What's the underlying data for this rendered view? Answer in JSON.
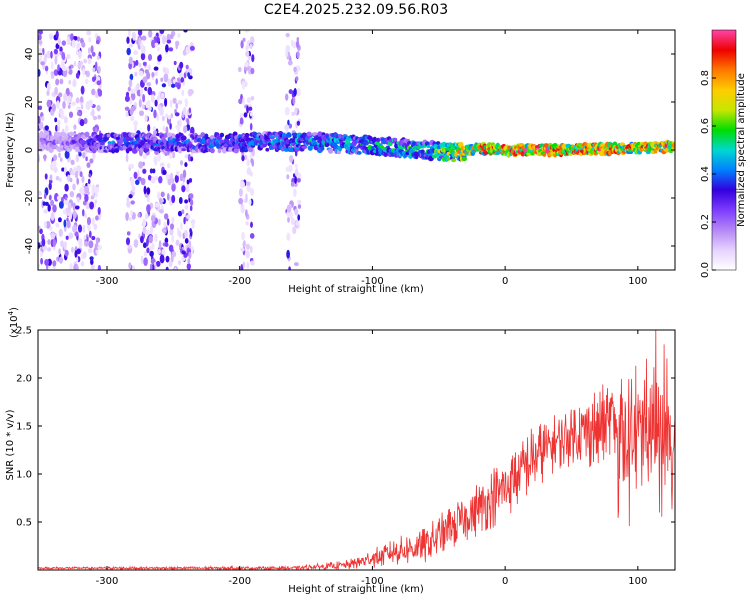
{
  "title": "C2E4.2025.232.09.56.R03",
  "chart_data": [
    {
      "type": "heatmap",
      "xlabel": "Height of straight line (km)",
      "ylabel": "Frequency (Hz)",
      "xlim": [
        -352,
        128
      ],
      "ylim": [
        -50,
        50
      ],
      "x_ticks": [
        -300,
        -200,
        -100,
        0,
        100
      ],
      "y_ticks": [
        -40,
        -20,
        0,
        20,
        40
      ],
      "colorbar": {
        "label": "Normalized spectral amplitude",
        "range": [
          0,
          1
        ],
        "ticks": [
          "0.0",
          "0.2",
          "0.4",
          "0.6",
          "0.8"
        ],
        "colors": [
          "#ffffff",
          "#e6d2ff",
          "#b487f5",
          "#7d3cff",
          "#3300dd",
          "#0080ff",
          "#00d8d0",
          "#00dd00",
          "#c8e600",
          "#ffcc00",
          "#ff7700",
          "#ee0000",
          "#ff44aa"
        ]
      },
      "ridge": [
        {
          "x": -350,
          "f": 3.5,
          "amp": 0.2
        },
        {
          "x": -320,
          "f": 3.2,
          "amp": 0.3
        },
        {
          "x": -300,
          "f": 3.0,
          "amp": 0.42
        },
        {
          "x": -260,
          "f": 3.0,
          "amp": 0.4
        },
        {
          "x": -220,
          "f": 3.0,
          "amp": 0.42
        },
        {
          "x": -180,
          "f": 3.5,
          "amp": 0.45
        },
        {
          "x": -150,
          "f": 3.5,
          "amp": 0.5
        },
        {
          "x": -120,
          "f": 2.5,
          "amp": 0.5
        },
        {
          "x": -90,
          "f": 1.5,
          "amp": 0.55
        },
        {
          "x": -60,
          "f": 0.0,
          "amp": 0.55
        },
        {
          "x": -40,
          "f": -1.0,
          "amp": 0.7
        },
        {
          "x": -20,
          "f": 0.5,
          "amp": 0.85
        },
        {
          "x": 0,
          "f": 0.0,
          "amp": 0.9
        },
        {
          "x": 40,
          "f": 0.0,
          "amp": 0.88
        },
        {
          "x": 80,
          "f": 0.5,
          "amp": 0.85
        },
        {
          "x": 110,
          "f": 1.0,
          "amp": 0.88
        },
        {
          "x": 128,
          "f": 1.5,
          "amp": 0.85
        }
      ],
      "noise_columns": [
        [
          -352,
          -305
        ],
        [
          -285,
          -235
        ],
        [
          -200,
          -190
        ],
        [
          -165,
          -155
        ]
      ]
    },
    {
      "type": "line",
      "xlabel": "Height of straight line (km)",
      "ylabel": "SNR (10 * v/v)",
      "y_multiplier": "(x10",
      "y_multiplier_exp": "4",
      "xlim": [
        -352,
        128
      ],
      "ylim": [
        0,
        2.5
      ],
      "x_ticks": [
        -300,
        -200,
        -100,
        0,
        100
      ],
      "y_ticks": [
        0.5,
        1.0,
        1.5,
        2.0,
        2.5
      ],
      "y_tick_labels": [
        "0.5",
        "1.0",
        "1.5",
        "2.0",
        "2.5"
      ],
      "color": "#ee3333",
      "envelope": [
        {
          "x": -352,
          "base": 0.02,
          "spread": 0.01
        },
        {
          "x": -160,
          "base": 0.02,
          "spread": 0.02
        },
        {
          "x": -120,
          "base": 0.05,
          "spread": 0.05
        },
        {
          "x": -100,
          "base": 0.12,
          "spread": 0.1
        },
        {
          "x": -80,
          "base": 0.2,
          "spread": 0.15
        },
        {
          "x": -60,
          "base": 0.25,
          "spread": 0.2
        },
        {
          "x": -40,
          "base": 0.45,
          "spread": 0.25
        },
        {
          "x": -20,
          "base": 0.65,
          "spread": 0.3
        },
        {
          "x": 0,
          "base": 0.85,
          "spread": 0.35
        },
        {
          "x": 20,
          "base": 1.15,
          "spread": 0.35
        },
        {
          "x": 40,
          "base": 1.35,
          "spread": 0.3
        },
        {
          "x": 60,
          "base": 1.45,
          "spread": 0.4
        },
        {
          "x": 80,
          "base": 1.5,
          "spread": 0.5
        },
        {
          "x": 100,
          "base": 1.4,
          "spread": 0.6
        },
        {
          "x": 128,
          "base": 1.4,
          "spread": 0.6
        }
      ]
    }
  ]
}
